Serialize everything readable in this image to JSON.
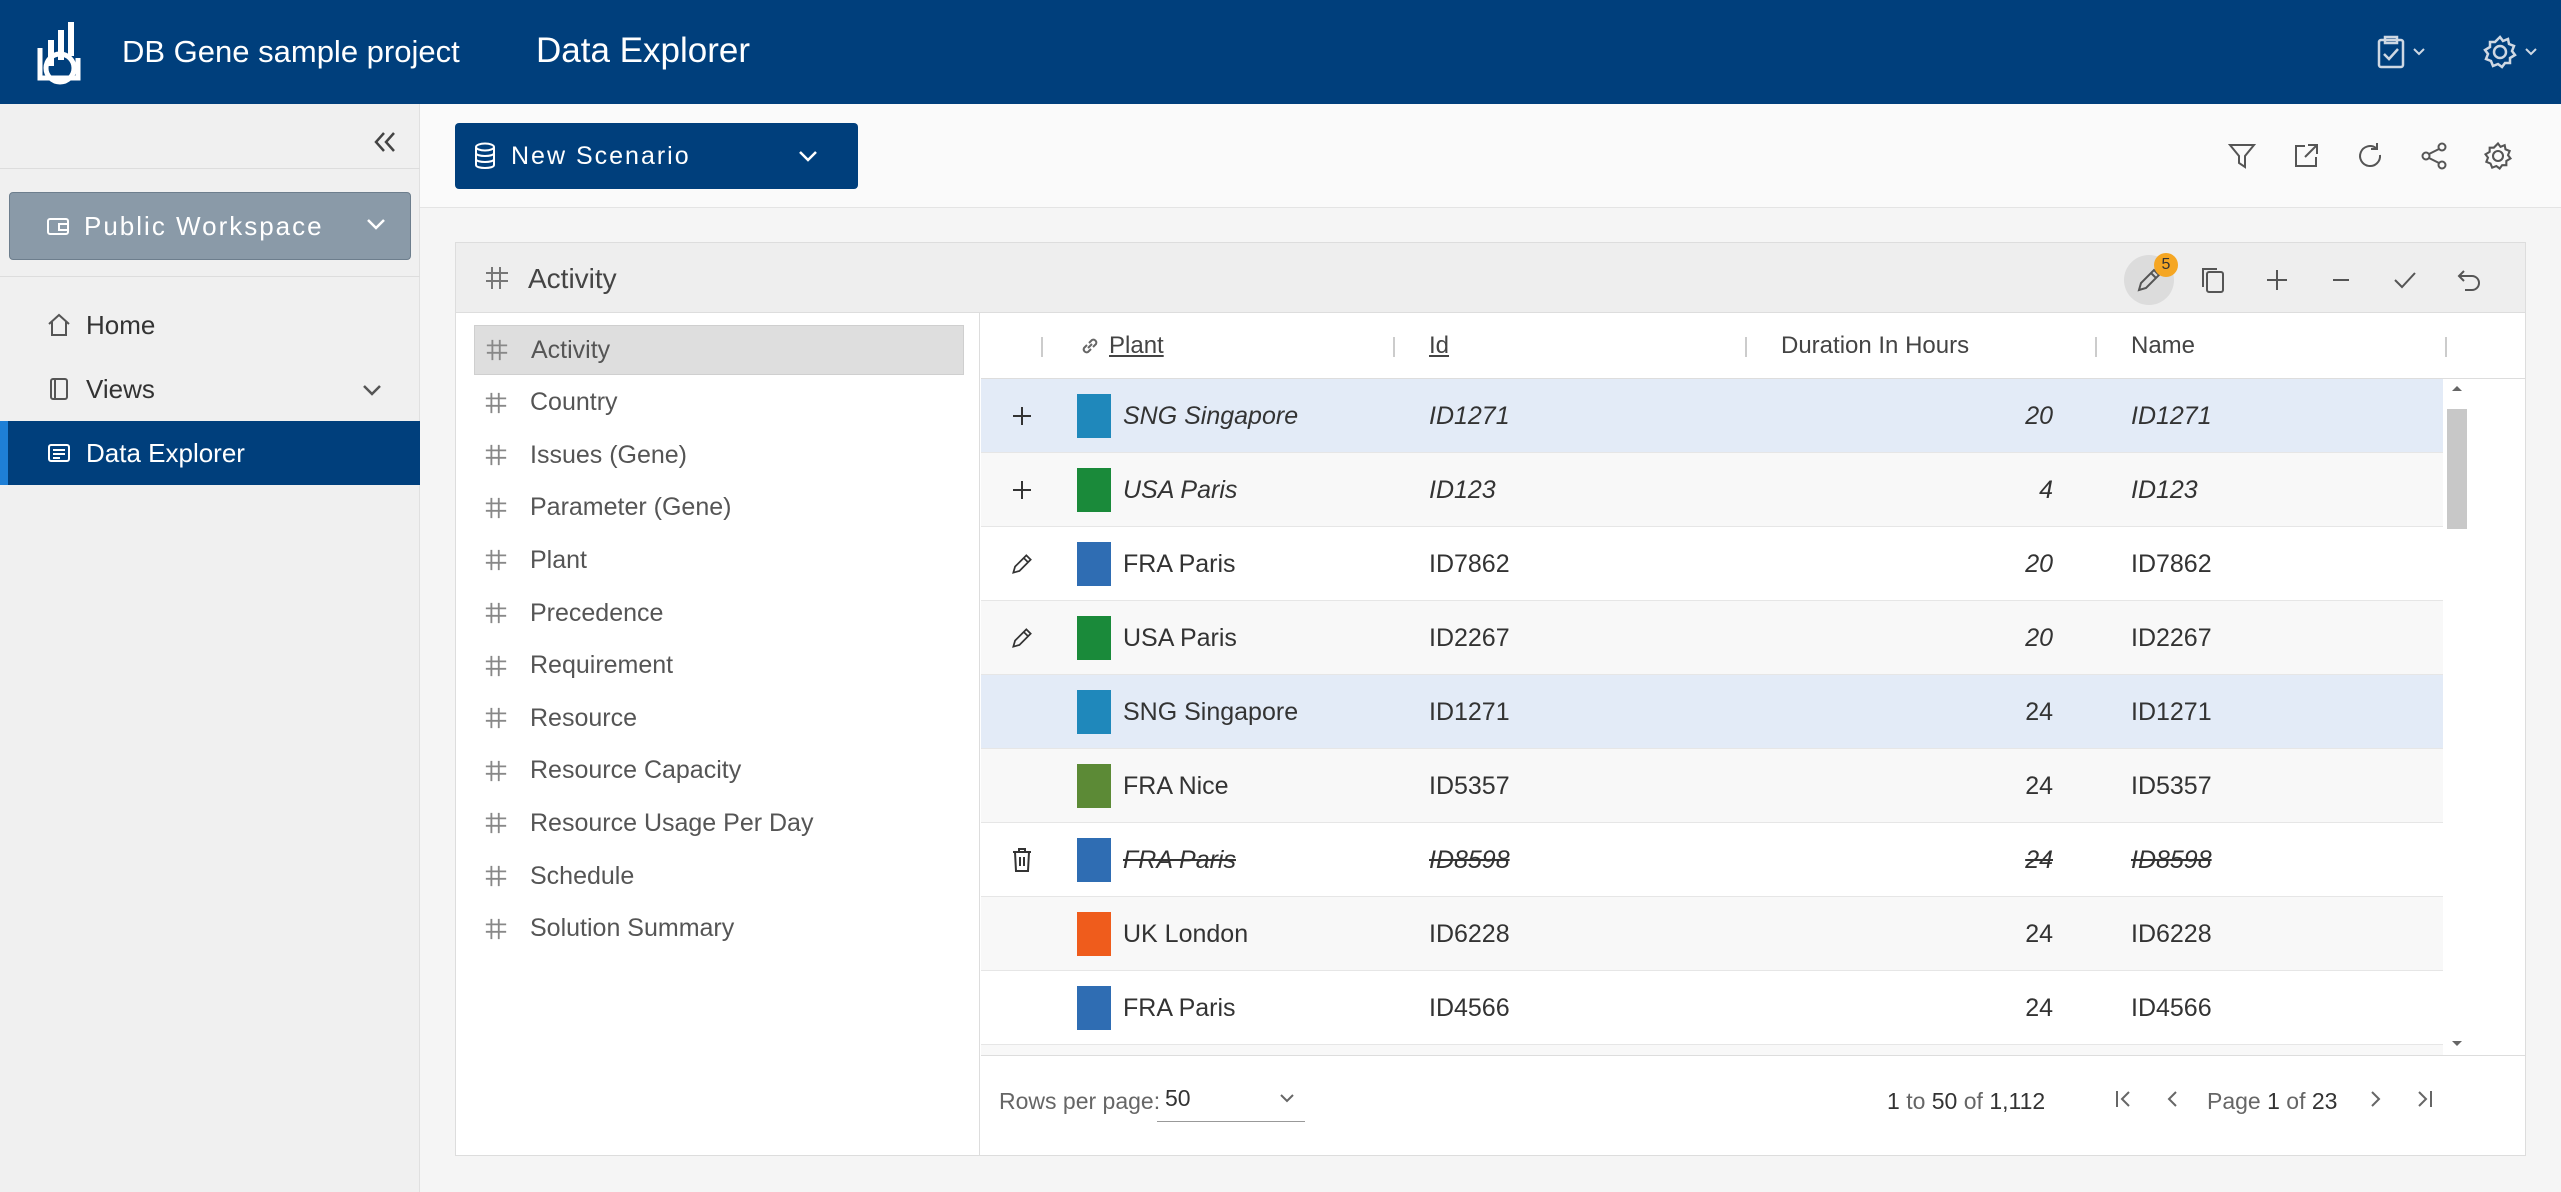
{
  "header": {
    "project_title": "DB Gene sample project",
    "app_title": "Data Explorer",
    "icons": [
      "logo-icon",
      "clipboard-check-icon",
      "gear-icon"
    ]
  },
  "sidebar": {
    "workspace_label": "Public Workspace",
    "items": [
      {
        "label": "Home",
        "icon": "home-icon"
      },
      {
        "label": "Views",
        "icon": "book-icon"
      },
      {
        "label": "Data Explorer",
        "icon": "document-icon",
        "active": true
      }
    ]
  },
  "toolbar": {
    "scenario_label": "New Scenario",
    "icons": [
      "filter-icon",
      "open-external-icon",
      "refresh-icon",
      "share-icon",
      "settings-icon"
    ]
  },
  "panel": {
    "title": "Activity",
    "edit_badge": "5",
    "actions": [
      "edit-icon",
      "copy-icon",
      "add-icon",
      "remove-icon",
      "check-icon",
      "undo-icon"
    ]
  },
  "tables": [
    "Activity",
    "Country",
    "Issues (Gene)",
    "Parameter (Gene)",
    "Plant",
    "Precedence",
    "Requirement",
    "Resource",
    "Resource Capacity",
    "Resource Usage Per Day",
    "Schedule",
    "Solution Summary"
  ],
  "grid": {
    "columns": [
      "Plant",
      "Id",
      "Duration In Hours",
      "Name"
    ],
    "rows": [
      {
        "state": "added",
        "color": "#1f88bb",
        "plant": "SNG Singapore",
        "id": "ID1271",
        "duration": "20",
        "name": "ID1271"
      },
      {
        "state": "added",
        "color": "#1a8a3a",
        "plant": "USA Paris",
        "id": "ID123",
        "duration": "4",
        "name": "ID123"
      },
      {
        "state": "edited",
        "color": "#2f6db3",
        "plant": "FRA Paris",
        "id": "ID7862",
        "duration": "20",
        "name": "ID7862"
      },
      {
        "state": "edited",
        "color": "#1a8a3a",
        "plant": "USA Paris",
        "id": "ID2267",
        "duration": "20",
        "name": "ID2267"
      },
      {
        "state": "none",
        "color": "#1f88bb",
        "plant": "SNG Singapore",
        "id": "ID1271",
        "duration": "24",
        "name": "ID1271"
      },
      {
        "state": "none",
        "color": "#5c8a36",
        "plant": "FRA Nice",
        "id": "ID5357",
        "duration": "24",
        "name": "ID5357"
      },
      {
        "state": "deleted",
        "color": "#2f6db3",
        "plant": "FRA Paris",
        "id": "ID8598",
        "duration": "24",
        "name": "ID8598"
      },
      {
        "state": "none",
        "color": "#ef5c1c",
        "plant": "UK London",
        "id": "ID6228",
        "duration": "24",
        "name": "ID6228"
      },
      {
        "state": "none",
        "color": "#2f6db3",
        "plant": "FRA Paris",
        "id": "ID4566",
        "duration": "24",
        "name": "ID4566"
      },
      {
        "state": "none",
        "color": "#1a8a3a",
        "plant": "",
        "id": "",
        "duration": "",
        "name": ""
      }
    ],
    "footer": {
      "rows_per_page_label": "Rows per page:",
      "rows_per_page": "50",
      "range_from": "1",
      "range_to_word": "to",
      "range_to": "50",
      "of_word": "of",
      "total": "1,112",
      "page_word": "Page",
      "page": "1",
      "page_of_word": "of",
      "pages": "23"
    }
  }
}
